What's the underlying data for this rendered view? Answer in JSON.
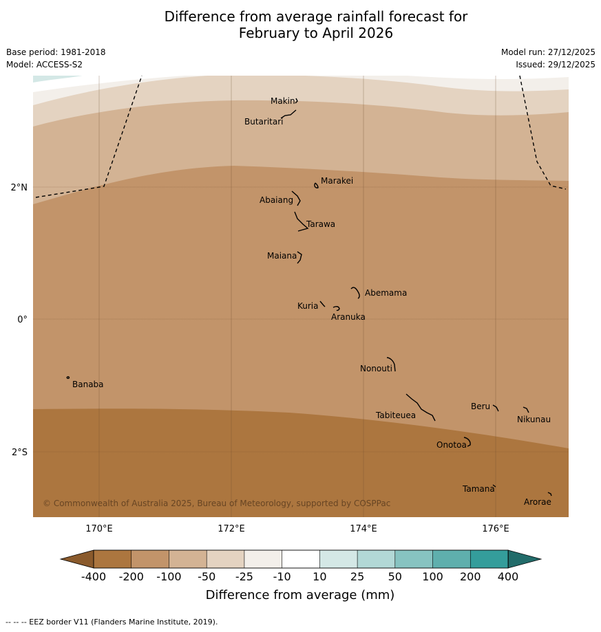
{
  "title_line1": "Difference from average rainfall forecast for",
  "title_line2": "February to April 2026",
  "meta_left": [
    "Base period: 1981-2018",
    "Model: ACCESS-S2"
  ],
  "meta_right": [
    "Model run: 27/12/2025",
    "Issued: 29/12/2025"
  ],
  "lat_labels": [
    "2°N",
    "0°",
    "2°S"
  ],
  "lon_labels": [
    "170°E",
    "172°E",
    "174°E",
    "176°E"
  ],
  "places": [
    "Makin",
    "Butaritari",
    "Marakei",
    "Abaiang",
    "Tarawa",
    "Maiana",
    "Abemama",
    "Kuria",
    "Aranuka",
    "Nonouti",
    "Banaba",
    "Beru",
    "Nikunau",
    "Tabiteuea",
    "Onotoa",
    "Tamana",
    "Arorae"
  ],
  "copyright": "© Commonwealth of Australia 2025, Bureau of Meteorology, supported by COSPPac",
  "colorbar": {
    "ticks": [
      "-400",
      "-200",
      "-100",
      "-50",
      "-25",
      "-10",
      "10",
      "25",
      "50",
      "100",
      "200",
      "400"
    ],
    "colors": [
      "#ac763f",
      "#c2946a",
      "#d3b394",
      "#e4d3c1",
      "#f3efea",
      "#ffffff",
      "#d4e8e6",
      "#b2d8d6",
      "#87c3c1",
      "#5fafad",
      "#349d9b"
    ],
    "under_color": "#8a5a2c",
    "over_color": "#226c6a",
    "label": "Difference from average (mm)"
  },
  "bands": {
    "lightest": "#f3efea",
    "light": "#e4d3c1",
    "mid": "#d3b394",
    "strong": "#c2946a",
    "strongest": "#ac763f",
    "teal_corner": "#d4e8e6"
  },
  "footnote": "--  --  -- EEZ border V11 (Flanders Marine Institute, 2019)."
}
